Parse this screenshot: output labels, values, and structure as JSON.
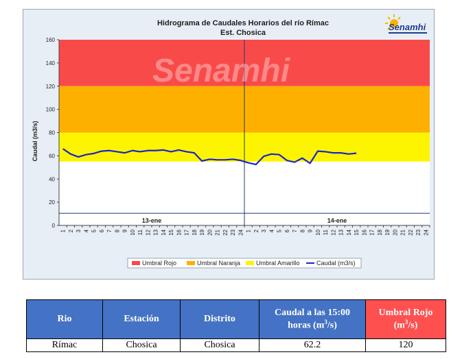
{
  "chart_data": {
    "type": "line",
    "title": "Hidrograma de Caudales Horarios del río Rímac",
    "subtitle": "Est. Chosica",
    "ylabel": "Caudal  (m3/s)",
    "ylim": [
      0,
      160
    ],
    "yticks": [
      0,
      20,
      40,
      60,
      80,
      100,
      120,
      140,
      160
    ],
    "xticks": [
      "1",
      "2",
      "3",
      "4",
      "5",
      "6",
      "7",
      "8",
      "9",
      "10",
      "11",
      "12",
      "13",
      "14",
      "15",
      "16",
      "17",
      "18",
      "19",
      "20",
      "21",
      "22",
      "23",
      "24",
      "1",
      "2",
      "3",
      "4",
      "5",
      "6",
      "7",
      "8",
      "9",
      "10",
      "11",
      "12",
      "13",
      "14",
      "15",
      "16",
      "17",
      "18",
      "19",
      "20",
      "21",
      "22",
      "23",
      "24"
    ],
    "day_labels": [
      "13-ene",
      "14-ene"
    ],
    "thresholds": [
      {
        "name": "Umbral Rojo",
        "from": 120,
        "to": 160,
        "color": "#f94a4a"
      },
      {
        "name": "Umbral Naranja",
        "from": 80,
        "to": 120,
        "color": "#fdb000"
      },
      {
        "name": "Umbral Amarillo",
        "from": 55,
        "to": 80,
        "color": "#fdf400"
      }
    ],
    "reference_line": 10.5,
    "series": [
      {
        "name": "Caudal (m3/s)",
        "color": "#1a22d0",
        "values": [
          66,
          61.5,
          59,
          61,
          62,
          64,
          64.5,
          63.5,
          62.5,
          64.5,
          63.5,
          64.5,
          64.5,
          65,
          63.5,
          65,
          63.5,
          62.5,
          55.5,
          57,
          56.5,
          56.5,
          57,
          56,
          54,
          52.5,
          59.5,
          61.5,
          61,
          56,
          54.5,
          58,
          53.5,
          64,
          63.5,
          62.5,
          62.5,
          61.5,
          62.2
        ]
      }
    ],
    "legend": [
      "Umbral Rojo",
      "Umbral Naranja",
      "Umbral Amarillo",
      "Caudal (m3/s)"
    ],
    "legend_position": "bottom",
    "grid": false
  },
  "watermark": "Senamhi",
  "logo": {
    "text": "Senamhi"
  },
  "table": {
    "headers": [
      "Rio",
      "Estación",
      "Distrito",
      "Caudal a las 15:00 horas (m",
      "Umbral Rojo (m"
    ],
    "header_units_sup": "3",
    "header_units_tail": "/s)",
    "row": [
      "Rímac",
      "Chosica",
      "Chosica",
      "62.2",
      "120"
    ]
  }
}
